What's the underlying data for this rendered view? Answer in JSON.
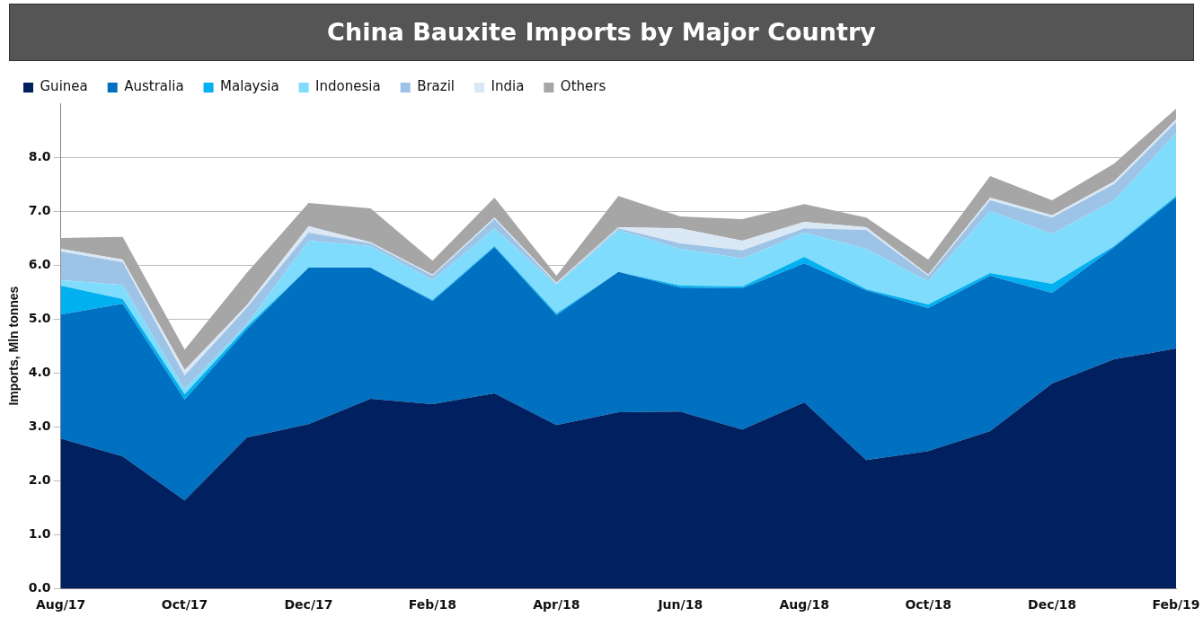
{
  "chart_data": {
    "type": "area",
    "title": "China Bauxite Imports by Major Country",
    "ylabel": "Imports, Mln tonnes",
    "categories": [
      "Aug/17",
      null,
      "Oct/17",
      null,
      "Dec/17",
      null,
      "Feb/18",
      null,
      "Apr/18",
      null,
      "Jun/18",
      null,
      "Aug/18",
      null,
      "Oct/18",
      null,
      "Dec/18",
      null,
      "Feb/19"
    ],
    "stacked": true,
    "grid": "y",
    "legend": "top",
    "marker": "none",
    "ylim": [
      0,
      9
    ],
    "yticks": [
      {
        "value": 0,
        "label": "0.0"
      },
      {
        "value": 1,
        "label": "1.0"
      },
      {
        "value": 2,
        "label": "2.0"
      },
      {
        "value": 3,
        "label": "3.0"
      },
      {
        "value": 4,
        "label": "4.0"
      },
      {
        "value": 5,
        "label": "5.0"
      },
      {
        "value": 6,
        "label": "6.0"
      },
      {
        "value": 7,
        "label": "7.0"
      },
      {
        "value": 8,
        "label": "8.0"
      }
    ],
    "series": [
      {
        "name": "Guinea",
        "color": "#002060",
        "values": [
          2.78,
          2.45,
          1.63,
          2.8,
          3.05,
          3.52,
          3.42,
          3.62,
          3.03,
          3.27,
          3.28,
          2.95,
          3.45,
          2.38,
          2.55,
          2.92,
          3.8,
          4.25,
          4.45
        ]
      },
      {
        "name": "Australia",
        "color": "#0070c0",
        "values": [
          2.3,
          2.83,
          1.87,
          2.0,
          2.9,
          2.43,
          1.91,
          2.71,
          2.04,
          2.6,
          2.3,
          2.62,
          2.58,
          3.15,
          2.65,
          2.88,
          1.68,
          2.08,
          2.8
        ]
      },
      {
        "name": "Malaysia",
        "color": "#00b0f0",
        "values": [
          0.54,
          0.09,
          0.1,
          0.05,
          0,
          0,
          0.02,
          0.02,
          0.03,
          0,
          0.04,
          0.03,
          0.12,
          0.02,
          0.07,
          0.05,
          0.17,
          0.02,
          0.03
        ]
      },
      {
        "name": "Indonesia",
        "color": "#80dcfc",
        "values": [
          0.1,
          0.26,
          0.1,
          0.05,
          0.5,
          0.4,
          0.37,
          0.33,
          0.53,
          0.78,
          0.68,
          0.52,
          0.45,
          0.75,
          0.43,
          1.15,
          0.93,
          0.85,
          1.17
        ]
      },
      {
        "name": "Brazil",
        "color": "#9dc3e6",
        "values": [
          0.53,
          0.42,
          0.25,
          0.3,
          0.15,
          0.05,
          0.08,
          0.17,
          0.02,
          0.03,
          0.1,
          0.15,
          0.08,
          0.35,
          0.1,
          0.2,
          0.3,
          0.3,
          0.2
        ]
      },
      {
        "name": "India",
        "color": "#dae8f5",
        "values": [
          0.05,
          0.05,
          0.1,
          0.05,
          0.12,
          0.02,
          0.02,
          0.03,
          0.02,
          0.02,
          0.28,
          0.18,
          0.12,
          0.05,
          0.02,
          0.05,
          0.04,
          0.05,
          0.05
        ]
      },
      {
        "name": "Others",
        "color": "#a6a6a6",
        "values": [
          0.2,
          0.42,
          0.38,
          0.6,
          0.43,
          0.63,
          0.26,
          0.37,
          0.13,
          0.58,
          0.22,
          0.4,
          0.33,
          0.18,
          0.28,
          0.4,
          0.28,
          0.33,
          0.2
        ]
      }
    ]
  }
}
